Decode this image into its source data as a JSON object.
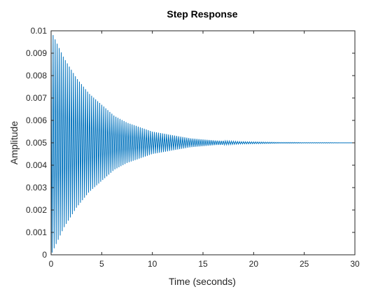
{
  "chart_data": {
    "type": "line",
    "title": "Step Response",
    "xlabel": "Time (seconds)",
    "ylabel": "Amplitude",
    "xlim": [
      0,
      30
    ],
    "ylim": [
      0,
      0.01
    ],
    "x_ticks": [
      0,
      5,
      10,
      15,
      20,
      25,
      30
    ],
    "x_tick_labels": [
      "0",
      "5",
      "10",
      "15",
      "20",
      "25",
      "30"
    ],
    "y_ticks": [
      0,
      0.001,
      0.002,
      0.003,
      0.004,
      0.005,
      0.006,
      0.007,
      0.008,
      0.009,
      0.01
    ],
    "y_tick_labels": [
      "0",
      "0.001",
      "0.002",
      "0.003",
      "0.004",
      "0.005",
      "0.006",
      "0.007",
      "0.008",
      "0.009",
      "0.01"
    ],
    "grid": false,
    "box": true,
    "series": [
      {
        "color": "#0072bd",
        "x": [
          0,
          1.25,
          2.5,
          3.75,
          5,
          6.25,
          7.5,
          8.75,
          10,
          11.25,
          12.5,
          13.75,
          15,
          16.25,
          17.5,
          18.75,
          20,
          21.25,
          22.5,
          23.75,
          25,
          26.25,
          27.5,
          28.75,
          30
        ],
        "envelope_upper": [
          0.01,
          0.0088,
          0.0079,
          0.0072,
          0.0067,
          0.0062,
          0.0059,
          0.0057,
          0.0055,
          0.0054,
          0.0053,
          0.0052,
          0.00515,
          0.0051,
          0.00508,
          0.00505,
          0.00504,
          0.00503,
          0.00502,
          0.00502,
          0.00501,
          0.00501,
          0.00501,
          0.005,
          0.005
        ],
        "envelope_lower": [
          0,
          0.0012,
          0.0021,
          0.0028,
          0.0033,
          0.0038,
          0.0041,
          0.0043,
          0.0045,
          0.0046,
          0.0047,
          0.0048,
          0.00485,
          0.0049,
          0.00492,
          0.00495,
          0.00496,
          0.00497,
          0.00498,
          0.00498,
          0.00499,
          0.00499,
          0.00499,
          0.005,
          0.005
        ],
        "final_value": 0.005,
        "oscillation_period": 0.2
      }
    ]
  }
}
